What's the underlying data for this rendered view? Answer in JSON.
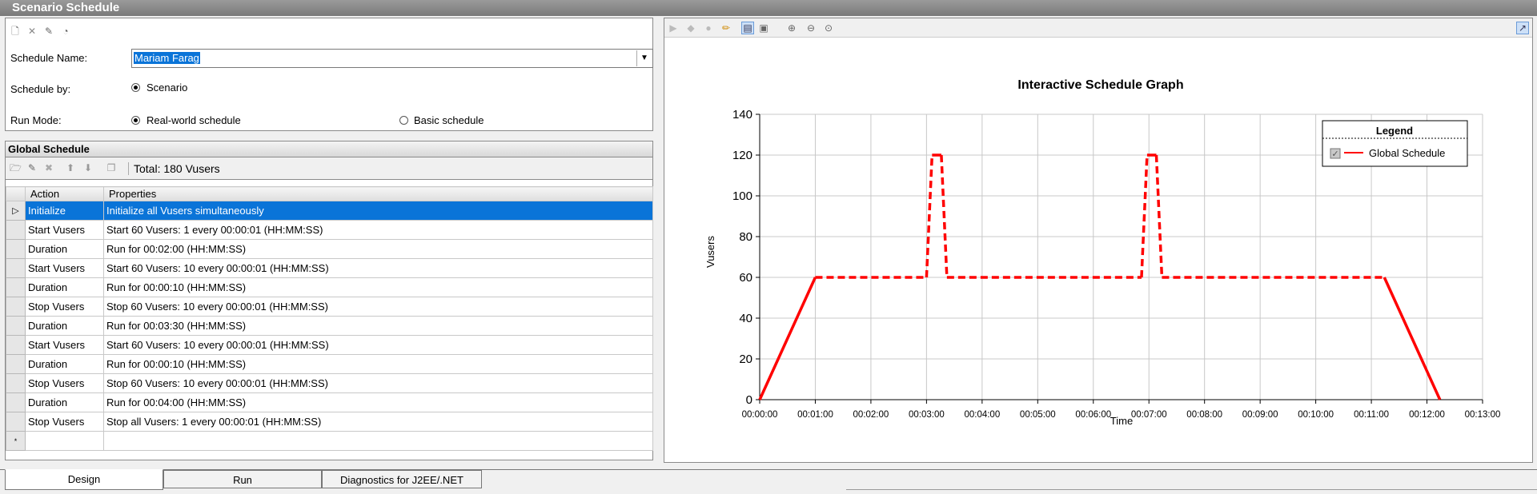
{
  "window": {
    "title": "Scenario Schedule"
  },
  "schedule_form": {
    "name_label": "Schedule Name:",
    "name_value": "Mariam Farag",
    "by_label": "Schedule by:",
    "by_option": "Scenario",
    "run_mode_label": "Run Mode:",
    "run_mode_option_1": "Real-world schedule",
    "run_mode_option_2": "Basic schedule",
    "run_mode_selected": "Real-world schedule"
  },
  "global_schedule": {
    "title": "Global Schedule",
    "total": "Total: 180 Vusers",
    "columns": [
      "Action",
      "Properties"
    ],
    "rows": [
      {
        "action": "Initialize",
        "properties": "Initialize all Vusers simultaneously"
      },
      {
        "action": "Start  Vusers",
        "properties": "Start 60 Vusers: 1 every 00:00:01 (HH:MM:SS)"
      },
      {
        "action": "Duration",
        "properties": "Run for 00:02:00 (HH:MM:SS)"
      },
      {
        "action": "Start  Vusers",
        "properties": "Start 60 Vusers: 10 every 00:00:01 (HH:MM:SS)"
      },
      {
        "action": "Duration",
        "properties": "Run for 00:00:10 (HH:MM:SS)"
      },
      {
        "action": "Stop Vusers",
        "properties": "Stop 60 Vusers: 10 every 00:00:01 (HH:MM:SS)"
      },
      {
        "action": "Duration",
        "properties": "Run for 00:03:30 (HH:MM:SS)"
      },
      {
        "action": "Start  Vusers",
        "properties": "Start 60 Vusers: 10 every 00:00:01 (HH:MM:SS)"
      },
      {
        "action": "Duration",
        "properties": "Run for 00:00:10 (HH:MM:SS)"
      },
      {
        "action": "Stop Vusers",
        "properties": "Stop 60 Vusers: 10 every 00:00:01 (HH:MM:SS)"
      },
      {
        "action": "Duration",
        "properties": "Run for 00:04:00 (HH:MM:SS)"
      },
      {
        "action": "Stop Vusers",
        "properties": "Stop all Vusers: 1 every 00:00:01 (HH:MM:SS)"
      }
    ],
    "selected_row": 0
  },
  "tabs": [
    "Design",
    "Run",
    "Diagnostics for J2EE/.NET"
  ],
  "active_tab": "Design",
  "colors": {
    "selection": "#0a74d8",
    "series": "#ff0000"
  },
  "icons": {
    "form_toolbar": [
      "new-schedule-icon",
      "delete-icon",
      "rename-icon",
      "schedule-properties-icon"
    ],
    "grid_toolbar": [
      "add-action-icon",
      "edit-action-icon",
      "delete-action-icon",
      "move-up-icon",
      "move-down-icon",
      "copy-icon"
    ],
    "graph_toolbar": [
      "add-point-icon",
      "delete-point-icon",
      "edit-point-icon",
      "pencil-icon",
      "graph-mode-icon",
      "fit-icon",
      "zoom-in-icon",
      "zoom-out-icon",
      "zoom-reset-icon",
      "hide-legend-icon"
    ]
  },
  "chart_data": {
    "type": "line",
    "title": "Interactive Schedule Graph",
    "xlabel": "Time",
    "ylabel": "Vusers",
    "x_ticks": [
      "00:00:00",
      "00:01:00",
      "00:02:00",
      "00:03:00",
      "00:04:00",
      "00:05:00",
      "00:06:00",
      "00:07:00",
      "00:08:00",
      "00:09:00",
      "00:10:00",
      "00:11:00",
      "00:12:00",
      "00:13:00"
    ],
    "xlim_seconds": [
      0,
      780
    ],
    "ylim": [
      0,
      140
    ],
    "y_ticks": [
      0,
      20,
      40,
      60,
      80,
      100,
      120,
      140
    ],
    "grid": true,
    "legend": {
      "title": "Legend",
      "position": "top-right"
    },
    "series": [
      {
        "name": "Global Schedule",
        "color": "#ff0000",
        "segments": [
          {
            "x": [
              "00:00:00",
              "00:01:00"
            ],
            "y": [
              0,
              60
            ],
            "style": "solid"
          },
          {
            "x": [
              "00:01:00",
              "00:03:00"
            ],
            "y": [
              60,
              60
            ],
            "style": "dashed"
          },
          {
            "x": [
              "00:03:00",
              "00:03:06"
            ],
            "y": [
              60,
              120
            ],
            "style": "dashed"
          },
          {
            "x": [
              "00:03:06",
              "00:03:16"
            ],
            "y": [
              120,
              120
            ],
            "style": "solid"
          },
          {
            "x": [
              "00:03:16",
              "00:03:22"
            ],
            "y": [
              120,
              60
            ],
            "style": "dashed"
          },
          {
            "x": [
              "00:03:22",
              "00:06:52"
            ],
            "y": [
              60,
              60
            ],
            "style": "dashed"
          },
          {
            "x": [
              "00:06:52",
              "00:06:58"
            ],
            "y": [
              60,
              120
            ],
            "style": "dashed"
          },
          {
            "x": [
              "00:06:58",
              "00:07:08"
            ],
            "y": [
              120,
              120
            ],
            "style": "solid"
          },
          {
            "x": [
              "00:07:08",
              "00:07:14"
            ],
            "y": [
              120,
              60
            ],
            "style": "dashed"
          },
          {
            "x": [
              "00:07:14",
              "00:11:14"
            ],
            "y": [
              60,
              60
            ],
            "style": "dashed"
          },
          {
            "x": [
              "00:11:14",
              "00:12:14"
            ],
            "y": [
              60,
              0
            ],
            "style": "solid"
          }
        ]
      }
    ]
  }
}
